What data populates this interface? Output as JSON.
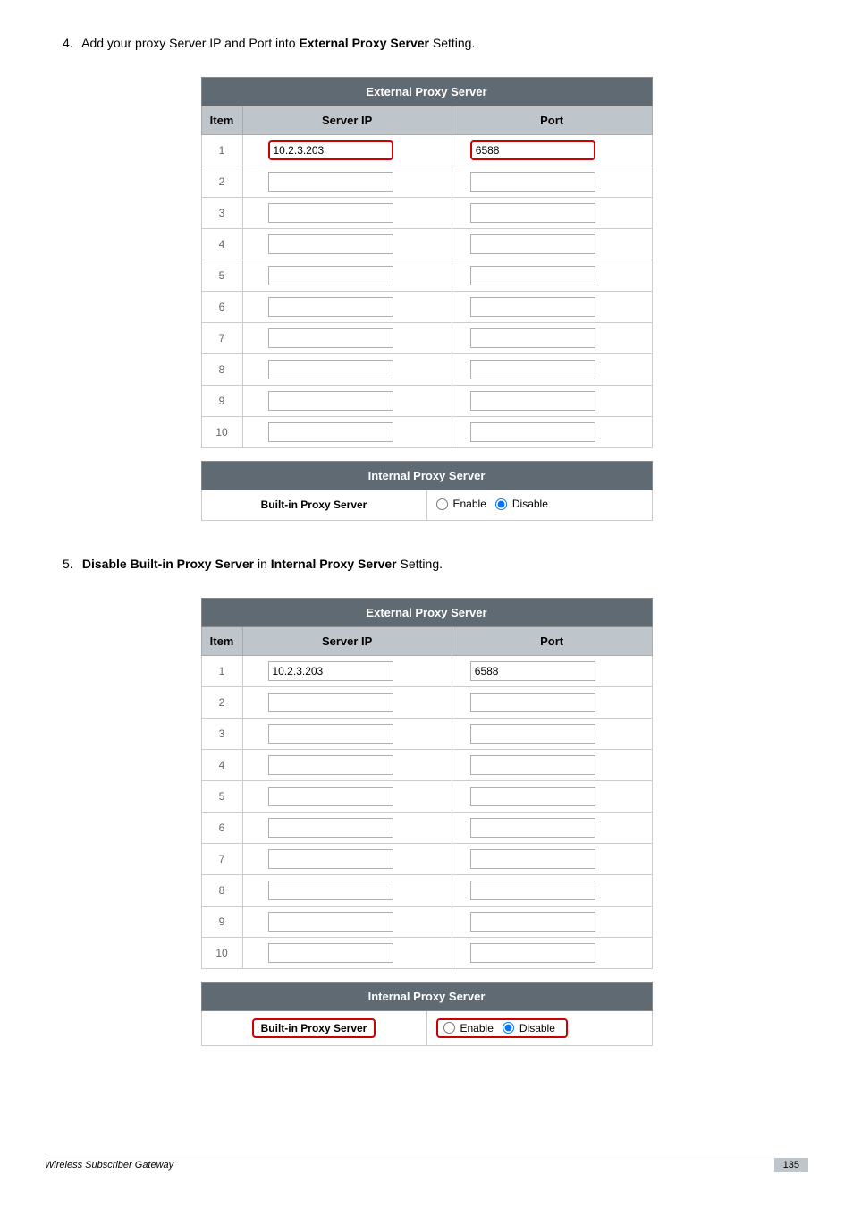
{
  "step4": {
    "num": "4.",
    "prefix": "Add your proxy Server IP and Port into ",
    "bold": "External Proxy Server",
    "suffix": " Setting."
  },
  "step5": {
    "num": "5.",
    "bold1": "Disable Built-in Proxy Server",
    "mid": " in ",
    "bold2": "Internal Proxy Server",
    "suffix": " Setting."
  },
  "externalTitle": "External Proxy Server",
  "internalTitle": "Internal Proxy Server",
  "colItem": "Item",
  "colServerIP": "Server IP",
  "colPort": "Port",
  "builtInLabel": "Built-in Proxy Server",
  "enableLabel": "Enable",
  "disableLabel": "Disable",
  "rows1": [
    {
      "n": "1",
      "ip": "10.2.3.203",
      "port": "6588",
      "hl": true
    },
    {
      "n": "2",
      "ip": "",
      "port": ""
    },
    {
      "n": "3",
      "ip": "",
      "port": ""
    },
    {
      "n": "4",
      "ip": "",
      "port": ""
    },
    {
      "n": "5",
      "ip": "",
      "port": ""
    },
    {
      "n": "6",
      "ip": "",
      "port": ""
    },
    {
      "n": "7",
      "ip": "",
      "port": ""
    },
    {
      "n": "8",
      "ip": "",
      "port": ""
    },
    {
      "n": "9",
      "ip": "",
      "port": ""
    },
    {
      "n": "10",
      "ip": "",
      "port": ""
    }
  ],
  "rows2": [
    {
      "n": "1",
      "ip": "10.2.3.203",
      "port": "6588"
    },
    {
      "n": "2",
      "ip": "",
      "port": ""
    },
    {
      "n": "3",
      "ip": "",
      "port": ""
    },
    {
      "n": "4",
      "ip": "",
      "port": ""
    },
    {
      "n": "5",
      "ip": "",
      "port": ""
    },
    {
      "n": "6",
      "ip": "",
      "port": ""
    },
    {
      "n": "7",
      "ip": "",
      "port": ""
    },
    {
      "n": "8",
      "ip": "",
      "port": ""
    },
    {
      "n": "9",
      "ip": "",
      "port": ""
    },
    {
      "n": "10",
      "ip": "",
      "port": ""
    }
  ],
  "fig1_highlight_inputs": true,
  "fig2_highlight_builtin": true,
  "footer": {
    "title": "Wireless Subscriber Gateway",
    "page": "135"
  },
  "colors": {
    "header_bg": "#5f6a72",
    "subhead_bg": "#bfc6cb",
    "highlight": "#cc0000"
  }
}
